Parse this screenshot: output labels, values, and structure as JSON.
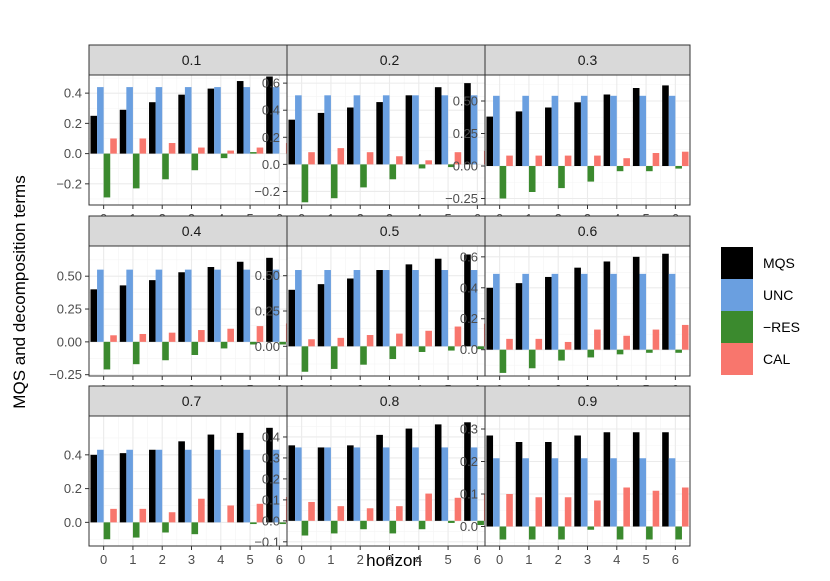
{
  "chart_data": {
    "type": "bar",
    "xlabel": "horizon",
    "ylabel": "MQS and decomposition terms",
    "categories": [
      "0",
      "1",
      "2",
      "3",
      "4",
      "5",
      "6"
    ],
    "legend": {
      "position": "right",
      "entries": [
        {
          "name": "MQS",
          "color": "#000000"
        },
        {
          "name": "UNC",
          "color": "#6a9fe0"
        },
        {
          "name": "−RES",
          "color": "#3b8a2e"
        },
        {
          "name": "CAL",
          "color": "#f8766d"
        }
      ]
    },
    "panels": [
      {
        "title": "0.1",
        "ylim": [
          -0.34,
          0.52
        ],
        "yticks": [
          -0.2,
          0.0,
          0.2,
          0.4
        ],
        "ytick_labels": [
          "−0.2",
          "0.0",
          "0.2",
          "0.4"
        ],
        "series": [
          {
            "name": "MQS",
            "values": [
              0.25,
              0.29,
              0.34,
              0.39,
              0.43,
              0.48,
              0.51
            ]
          },
          {
            "name": "UNC",
            "values": [
              0.44,
              0.44,
              0.44,
              0.44,
              0.44,
              0.44,
              0.44
            ]
          },
          {
            "name": "−RES",
            "values": [
              -0.29,
              -0.23,
              -0.17,
              -0.11,
              -0.03,
              0.01,
              0.0
            ]
          },
          {
            "name": "CAL",
            "values": [
              0.1,
              0.1,
              0.07,
              0.04,
              0.02,
              0.04,
              0.07
            ]
          }
        ]
      },
      {
        "title": "0.2",
        "ylim": [
          -0.3,
          0.66
        ],
        "yticks": [
          -0.2,
          0.0,
          0.2,
          0.4,
          0.6
        ],
        "ytick_labels": [
          "−0.2",
          "0.0",
          "0.2",
          "0.4",
          "0.6"
        ],
        "series": [
          {
            "name": "MQS",
            "values": [
              0.33,
              0.38,
              0.42,
              0.46,
              0.51,
              0.57,
              0.6
            ]
          },
          {
            "name": "UNC",
            "values": [
              0.51,
              0.51,
              0.51,
              0.51,
              0.51,
              0.51,
              0.51
            ]
          },
          {
            "name": "−RES",
            "values": [
              -0.28,
              -0.25,
              -0.17,
              -0.11,
              -0.03,
              -0.02,
              0.0
            ]
          },
          {
            "name": "CAL",
            "values": [
              0.09,
              0.12,
              0.09,
              0.06,
              0.03,
              0.09,
              0.1
            ]
          }
        ]
      },
      {
        "title": "0.3",
        "ylim": [
          -0.3,
          0.7
        ],
        "yticks": [
          -0.25,
          0.0,
          0.25,
          0.5
        ],
        "ytick_labels": [
          "−0.25",
          "0.00",
          "0.25",
          "0.50"
        ],
        "series": [
          {
            "name": "MQS",
            "values": [
              0.38,
              0.42,
              0.45,
              0.49,
              0.55,
              0.6,
              0.62
            ]
          },
          {
            "name": "UNC",
            "values": [
              0.54,
              0.54,
              0.54,
              0.54,
              0.54,
              0.54,
              0.54
            ]
          },
          {
            "name": "−RES",
            "values": [
              -0.25,
              -0.2,
              -0.17,
              -0.12,
              -0.04,
              -0.04,
              -0.02
            ]
          },
          {
            "name": "CAL",
            "values": [
              0.08,
              0.08,
              0.08,
              0.08,
              0.06,
              0.1,
              0.11
            ]
          }
        ]
      },
      {
        "title": "0.4",
        "ylim": [
          -0.26,
          0.73
        ],
        "yticks": [
          -0.25,
          0.0,
          0.25,
          0.5
        ],
        "ytick_labels": [
          "−0.25",
          "0.00",
          "0.25",
          "0.50"
        ],
        "series": [
          {
            "name": "MQS",
            "values": [
              0.4,
              0.43,
              0.47,
              0.53,
              0.57,
              0.61,
              0.64
            ]
          },
          {
            "name": "UNC",
            "values": [
              0.55,
              0.55,
              0.55,
              0.55,
              0.55,
              0.55,
              0.55
            ]
          },
          {
            "name": "−RES",
            "values": [
              -0.21,
              -0.17,
              -0.14,
              -0.1,
              -0.05,
              -0.02,
              -0.02
            ]
          },
          {
            "name": "CAL",
            "values": [
              0.05,
              0.06,
              0.07,
              0.09,
              0.1,
              0.12,
              0.14
            ]
          }
        ]
      },
      {
        "title": "0.5",
        "ylim": [
          -0.21,
          0.71
        ],
        "yticks": [
          0.0,
          0.25,
          0.5
        ],
        "ytick_labels": [
          "0.00",
          "0.25",
          "0.50"
        ],
        "series": [
          {
            "name": "MQS",
            "values": [
              0.4,
              0.44,
              0.48,
              0.54,
              0.58,
              0.62,
              0.65
            ]
          },
          {
            "name": "UNC",
            "values": [
              0.54,
              0.54,
              0.54,
              0.54,
              0.54,
              0.54,
              0.54
            ]
          },
          {
            "name": "−RES",
            "values": [
              -0.18,
              -0.16,
              -0.13,
              -0.09,
              -0.04,
              -0.03,
              -0.02
            ]
          },
          {
            "name": "CAL",
            "values": [
              0.05,
              0.06,
              0.08,
              0.09,
              0.11,
              0.14,
              0.16
            ]
          }
        ]
      },
      {
        "title": "0.6",
        "ylim": [
          -0.17,
          0.67
        ],
        "yticks": [
          0.0,
          0.2,
          0.4,
          0.6
        ],
        "ytick_labels": [
          "0.0",
          "0.2",
          "0.4",
          "0.6"
        ],
        "series": [
          {
            "name": "MQS",
            "values": [
              0.4,
              0.43,
              0.47,
              0.53,
              0.57,
              0.6,
              0.62
            ]
          },
          {
            "name": "UNC",
            "values": [
              0.49,
              0.49,
              0.49,
              0.49,
              0.49,
              0.49,
              0.49
            ]
          },
          {
            "name": "−RES",
            "values": [
              -0.15,
              -0.12,
              -0.07,
              -0.05,
              -0.03,
              -0.02,
              -0.02
            ]
          },
          {
            "name": "CAL",
            "values": [
              0.07,
              0.07,
              0.05,
              0.13,
              0.09,
              0.13,
              0.16
            ]
          }
        ]
      },
      {
        "title": "0.7",
        "ylim": [
          -0.14,
          0.63
        ],
        "yticks": [
          0.0,
          0.2,
          0.4
        ],
        "ytick_labels": [
          "0.0",
          "0.2",
          "0.4"
        ],
        "series": [
          {
            "name": "MQS",
            "values": [
              0.4,
              0.41,
              0.43,
              0.48,
              0.52,
              0.53,
              0.56
            ]
          },
          {
            "name": "UNC",
            "values": [
              0.43,
              0.43,
              0.43,
              0.43,
              0.43,
              0.43,
              0.43
            ]
          },
          {
            "name": "−RES",
            "values": [
              -0.1,
              -0.09,
              -0.06,
              -0.07,
              0.0,
              -0.01,
              -0.01
            ]
          },
          {
            "name": "CAL",
            "values": [
              0.08,
              0.08,
              0.06,
              0.14,
              0.1,
              0.11,
              0.15
            ]
          }
        ]
      },
      {
        "title": "0.8",
        "ylim": [
          -0.12,
          0.5
        ],
        "yticks": [
          -0.1,
          0.0,
          0.1,
          0.2,
          0.3,
          0.4
        ],
        "ytick_labels": [
          "−0.1",
          "0.0",
          "0.1",
          "0.2",
          "0.3",
          "0.4"
        ],
        "series": [
          {
            "name": "MQS",
            "values": [
              0.36,
              0.35,
              0.36,
              0.41,
              0.44,
              0.46,
              0.47
            ]
          },
          {
            "name": "UNC",
            "values": [
              0.35,
              0.35,
              0.35,
              0.35,
              0.35,
              0.35,
              0.35
            ]
          },
          {
            "name": "−RES",
            "values": [
              -0.07,
              -0.06,
              -0.04,
              -0.06,
              -0.04,
              -0.01,
              -0.02
            ]
          },
          {
            "name": "CAL",
            "values": [
              0.09,
              0.07,
              0.06,
              0.07,
              0.13,
              0.11,
              0.13
            ]
          }
        ]
      },
      {
        "title": "0.9",
        "ylim": [
          -0.06,
          0.34
        ],
        "yticks": [
          0.0,
          0.1,
          0.2,
          0.3
        ],
        "ytick_labels": [
          "0.0",
          "0.1",
          "0.2",
          "0.3"
        ],
        "series": [
          {
            "name": "MQS",
            "values": [
              0.28,
              0.26,
              0.26,
              0.28,
              0.29,
              0.29,
              0.29
            ]
          },
          {
            "name": "UNC",
            "values": [
              0.21,
              0.21,
              0.21,
              0.21,
              0.21,
              0.21,
              0.21
            ]
          },
          {
            "name": "−RES",
            "values": [
              -0.04,
              -0.04,
              -0.04,
              -0.01,
              -0.04,
              -0.04,
              -0.04
            ]
          },
          {
            "name": "CAL",
            "values": [
              0.1,
              0.09,
              0.09,
              0.08,
              0.12,
              0.11,
              0.12
            ]
          }
        ]
      }
    ]
  }
}
